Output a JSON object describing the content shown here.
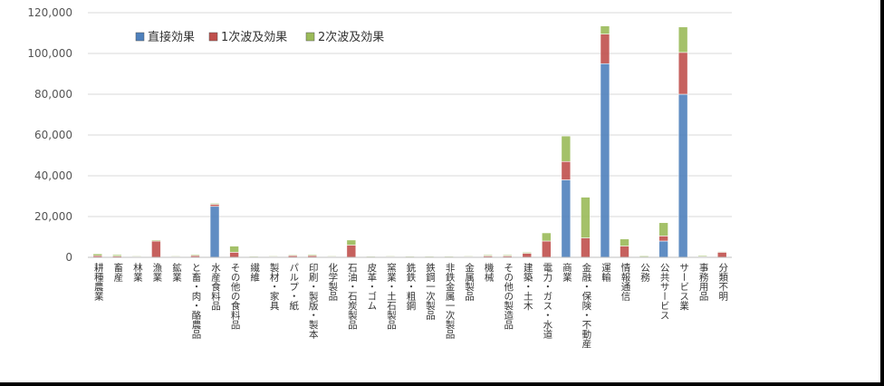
{
  "chart_data": {
    "type": "bar",
    "stacked": true,
    "ylim": [
      0,
      120000
    ],
    "yticks": [
      0,
      20000,
      40000,
      60000,
      80000,
      100000,
      120000
    ],
    "ytick_labels": [
      "0",
      "20,000",
      "40,000",
      "60,000",
      "80,000",
      "100,000",
      "120,000"
    ],
    "grid": true,
    "legend_position": "top-left",
    "categories": [
      "耕種農業",
      "畜産",
      "林業",
      "漁業",
      "鉱業",
      "と畜・肉・酪農品",
      "水産食料品",
      "その他の食料品",
      "繊維",
      "製材・家具",
      "パルプ・紙",
      "印刷・製版・製本",
      "化学製品",
      "石油・石炭製品",
      "皮革・ゴム",
      "窯業・土石製品",
      "銑鉄・粗鋼",
      "鉄鋼一次製品",
      "非鉄金属一次製品",
      "金属製品",
      "機械",
      "その他の製造品",
      "建築・土木",
      "電力・ガス・水道",
      "商業",
      "金融・保険・不動産",
      "運輸",
      "情報通信",
      "公務",
      "公共サービス",
      "サービス業",
      "事務用品",
      "分類不明"
    ],
    "series": [
      {
        "name": "直接効果",
        "color": "#4f81bd",
        "values": [
          0,
          0,
          0,
          0,
          0,
          0,
          25000,
          0,
          0,
          0,
          0,
          0,
          0,
          0,
          0,
          0,
          0,
          0,
          0,
          0,
          0,
          0,
          0,
          0,
          38000,
          0,
          95000,
          0,
          0,
          8000,
          80000,
          0,
          0
        ]
      },
      {
        "name": "1次波及効果",
        "color": "#c0504d",
        "values": [
          800,
          600,
          300,
          8000,
          300,
          800,
          1000,
          2500,
          100,
          300,
          800,
          800,
          300,
          6000,
          200,
          300,
          100,
          100,
          100,
          300,
          700,
          700,
          2000,
          8000,
          9000,
          9500,
          14500,
          5500,
          200,
          2500,
          20500,
          300,
          2500
        ]
      },
      {
        "name": "2次波及効果",
        "color": "#9bbb59",
        "values": [
          900,
          700,
          200,
          500,
          200,
          500,
          500,
          3000,
          100,
          200,
          400,
          500,
          300,
          2500,
          200,
          300,
          100,
          100,
          100,
          300,
          500,
          500,
          500,
          4000,
          12500,
          20000,
          4000,
          3500,
          500,
          6500,
          12500,
          500,
          300
        ]
      }
    ]
  }
}
